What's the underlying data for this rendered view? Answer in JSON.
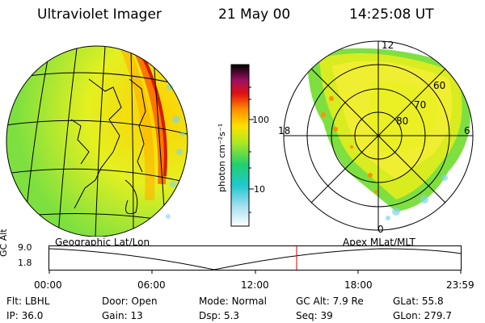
{
  "header": {
    "instrument": "Ultraviolet Imager",
    "date": "21 May 00",
    "time": "14:25:08 UT"
  },
  "colorbar": {
    "unit_label": "photon cm⁻²s⁻¹",
    "ticks": [
      "100",
      "10"
    ],
    "scale": "log"
  },
  "polar": {
    "lat_labels": [
      "60",
      "70",
      "80"
    ],
    "mlt_labels": [
      "12",
      "18",
      "6",
      "0"
    ]
  },
  "timeline": {
    "left_label": "Geographic Lat/Lon",
    "right_label": "Apex MLat/MLT",
    "axis_label": "GC Alt",
    "y_ticks": [
      "9.0",
      "1.8"
    ],
    "x_ticks": [
      "00:00",
      "06:00",
      "12:00",
      "18:00",
      "23:59"
    ],
    "current_time_marker": "14:25",
    "marker_color": "#e00000"
  },
  "status": {
    "row1": [
      {
        "label": "Flt:",
        "value": "LBHL"
      },
      {
        "label": "Door:",
        "value": "Open"
      },
      {
        "label": "Mode:",
        "value": "Normal"
      },
      {
        "label": "GC Alt:",
        "value": "7.9 Re"
      },
      {
        "label": "GLat:",
        "value": "55.8"
      }
    ],
    "row2": [
      {
        "label": "IP:",
        "value": "36.0"
      },
      {
        "label": "Gain:",
        "value": "13"
      },
      {
        "label": "Dsp:",
        "value": "5.3"
      },
      {
        "label": "Seq:",
        "value": "39"
      },
      {
        "label": "GLon:",
        "value": "279.7"
      }
    ]
  }
}
